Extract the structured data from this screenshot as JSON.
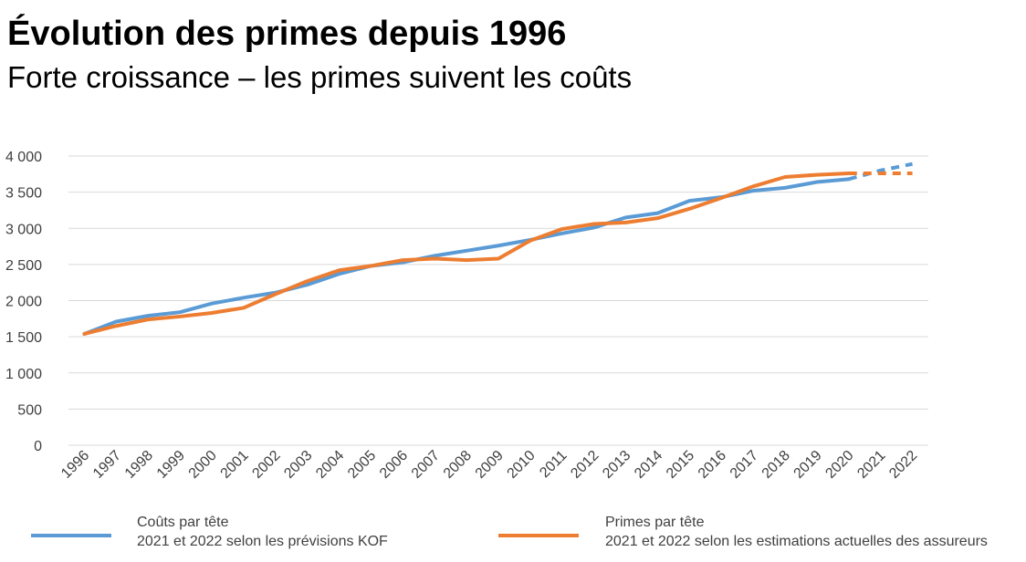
{
  "header": {
    "title": "Évolution des primes depuis 1996",
    "subtitle": "Forte croissance – les primes suivent les coûts"
  },
  "legend": [
    {
      "name": "Coûts par tête",
      "note": "2021 et 2022 selon les prévisions KOF",
      "color": "#5B9BD5"
    },
    {
      "name": "Primes par tête",
      "note": "2021 et 2022 selon les estimations actuelles des assureurs",
      "color": "#ED7D31"
    }
  ],
  "chart_data": {
    "type": "line",
    "title": "Évolution des primes depuis 1996",
    "subtitle": "Forte croissance – les primes suivent les coûts",
    "xlabel": "",
    "ylabel": "",
    "ylim": [
      0,
      4000
    ],
    "yticks": [
      0,
      500,
      1000,
      1500,
      2000,
      2500,
      3000,
      3500,
      4000
    ],
    "ytick_labels": [
      "0",
      "500",
      "1 000",
      "1 500",
      "2 000",
      "2 500",
      "3 000",
      "3 500",
      "4 000"
    ],
    "grid": true,
    "legend_position": "bottom",
    "categories": [
      "1996",
      "1997",
      "1998",
      "1999",
      "2000",
      "2001",
      "2002",
      "2003",
      "2004",
      "2005",
      "2006",
      "2007",
      "2008",
      "2009",
      "2010",
      "2011",
      "2012",
      "2013",
      "2014",
      "2015",
      "2016",
      "2017",
      "2018",
      "2019",
      "2020",
      "2021",
      "2022"
    ],
    "series": [
      {
        "name": "Coûts par tête",
        "note": "2021 et 2022 selon les prévisions KOF",
        "color": "#5B9BD5",
        "forecast_from_index": 24,
        "values": [
          1540,
          1710,
          1790,
          1840,
          1960,
          2040,
          2110,
          2220,
          2370,
          2480,
          2530,
          2620,
          2690,
          2760,
          2840,
          2930,
          3010,
          3150,
          3210,
          3380,
          3430,
          3520,
          3560,
          3640,
          3680,
          3800,
          3890
        ]
      },
      {
        "name": "Primes par tête",
        "note": "2021 et 2022 selon les estimations actuelles des assureurs",
        "color": "#ED7D31",
        "forecast_from_index": 24,
        "values": [
          1540,
          1650,
          1740,
          1780,
          1830,
          1900,
          2090,
          2270,
          2420,
          2480,
          2560,
          2580,
          2560,
          2580,
          2830,
          2990,
          3060,
          3080,
          3140,
          3270,
          3420,
          3580,
          3710,
          3740,
          3760,
          3760,
          3760
        ]
      }
    ]
  }
}
